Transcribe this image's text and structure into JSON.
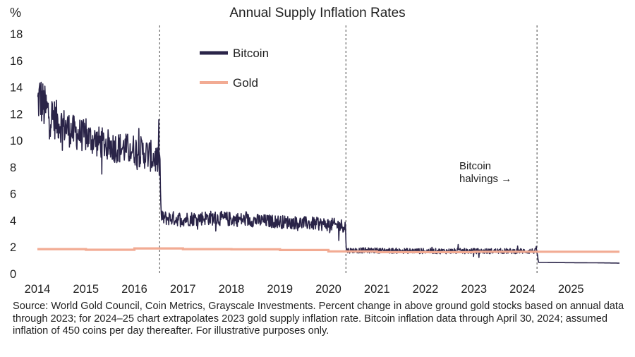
{
  "chart_data": {
    "type": "line",
    "title": "Annual Supply Inflation Rates",
    "ylabel": "%",
    "xlabel": "",
    "ylim": [
      0,
      18
    ],
    "xlim": [
      2014.0,
      2026.0
    ],
    "y_ticks": [
      0,
      2,
      4,
      6,
      8,
      10,
      12,
      14,
      16,
      18
    ],
    "x_ticks": [
      2014,
      2015,
      2016,
      2017,
      2018,
      2019,
      2020,
      2021,
      2022,
      2023,
      2024,
      2025
    ],
    "grid": false,
    "legend_position": "top-center",
    "series": [
      {
        "name": "Bitcoin",
        "color": "#2a2448",
        "style": "noisy-daily",
        "x": [
          2014.0,
          2014.05,
          2014.15,
          2014.3,
          2014.5,
          2014.75,
          2015.0,
          2015.25,
          2015.5,
          2015.75,
          2016.0,
          2016.25,
          2016.45,
          2016.53,
          2016.55,
          2017.0,
          2017.5,
          2018.0,
          2018.5,
          2019.0,
          2019.5,
          2020.0,
          2020.35,
          2020.37,
          2021.0,
          2021.5,
          2022.0,
          2022.5,
          2023.0,
          2023.5,
          2024.0,
          2024.3,
          2024.33,
          2025.0,
          2025.5,
          2026.0
        ],
        "values": [
          12.8,
          13.2,
          12.4,
          11.8,
          11.2,
          10.6,
          10.3,
          9.9,
          9.6,
          9.4,
          9.3,
          9.0,
          8.6,
          8.2,
          4.2,
          4.1,
          4.2,
          4.1,
          4.0,
          3.9,
          3.8,
          3.7,
          3.6,
          1.75,
          1.75,
          1.72,
          1.7,
          1.7,
          1.7,
          1.7,
          1.7,
          1.7,
          0.85,
          0.83,
          0.82,
          0.8
        ],
        "noise_amplitude": [
          1.6,
          1.9,
          1.8,
          1.6,
          1.4,
          1.3,
          1.2,
          1.2,
          1.2,
          1.2,
          1.2,
          1.2,
          1.2,
          1.2,
          0.55,
          0.55,
          0.55,
          0.55,
          0.5,
          0.5,
          0.5,
          0.5,
          0.5,
          0.2,
          0.2,
          0.2,
          0.2,
          0.2,
          0.2,
          0.2,
          0.2,
          0.2,
          0.0,
          0.0,
          0.0,
          0.0
        ]
      },
      {
        "name": "Gold",
        "color": "#f2ab93",
        "style": "step",
        "x": [
          2014.0,
          2015.0,
          2016.0,
          2017.0,
          2018.0,
          2019.0,
          2020.0,
          2021.0,
          2022.0,
          2023.0,
          2024.0,
          2025.0,
          2026.0
        ],
        "values": [
          1.85,
          1.8,
          1.9,
          1.85,
          1.83,
          1.78,
          1.68,
          1.62,
          1.62,
          1.65,
          1.65,
          1.65,
          1.65
        ]
      }
    ],
    "halvings": [
      2016.52,
      2020.36,
      2024.3
    ],
    "annotation": "Bitcoin\nhalvings →",
    "annotation_position": [
      2024.0,
      7.9
    ]
  },
  "source_text": "Source: World Gold Council, Coin Metrics, Grayscale Investments. Percent change in above ground gold stocks based on annual data through 2023; for 2024–25 chart extrapolates 2023 gold supply inflation rate. Bitcoin inflation data through April 30, 2024; assumed inflation of 450 coins per day thereafter. For illustrative purposes only."
}
